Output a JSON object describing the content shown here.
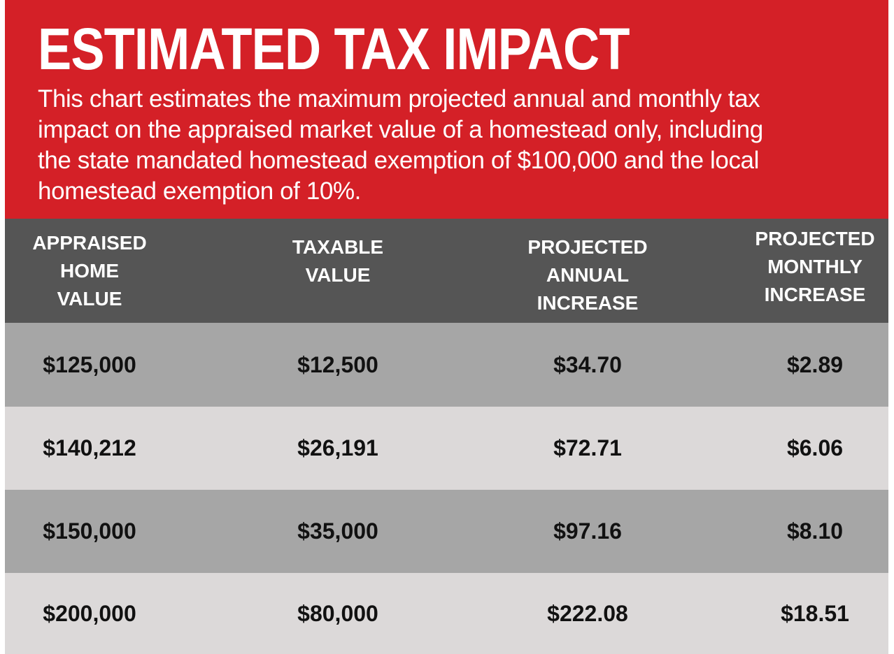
{
  "header": {
    "title": "ESTIMATED TAX IMPACT",
    "description": [
      "This chart estimates the maximum projected annual and monthly tax",
      "impact on the appraised market value of a homestead only, including",
      "the state mandated homestead exemption of $100,000 and the local",
      "homestead exemption of 10%."
    ]
  },
  "table": {
    "columns": [
      [
        "APPRAISED",
        "HOME",
        "VALUE"
      ],
      [
        "TAXABLE",
        "VALUE"
      ],
      [
        "PROJECTED",
        "ANNUAL",
        "INCREASE"
      ],
      [
        "PROJECTED",
        "MONTHLY",
        "INCREASE"
      ]
    ],
    "rows": [
      [
        "$125,000",
        "$12,500",
        "$34.70",
        "$2.89"
      ],
      [
        "$140,212",
        "$26,191",
        "$72.71",
        "$6.06"
      ],
      [
        "$150,000",
        "$35,000",
        "$97.16",
        "$8.10"
      ],
      [
        "$200,000",
        "$80,000",
        "$222.08",
        "$18.51"
      ]
    ]
  }
}
